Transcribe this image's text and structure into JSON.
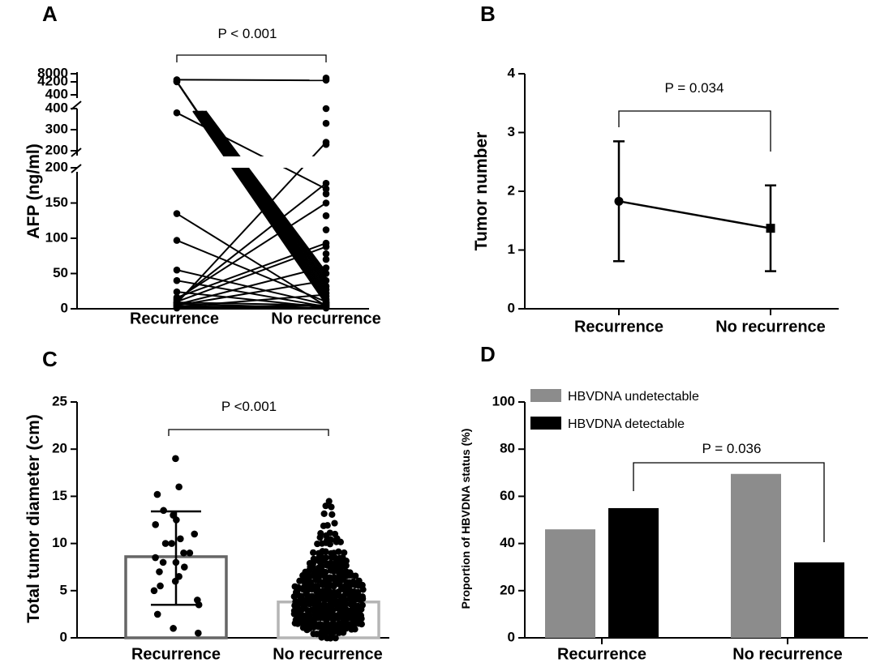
{
  "chart_data": [
    {
      "panel": "A",
      "type": "scatter",
      "ylabel": "AFP (ng/ml)",
      "categories": [
        "Recurrence",
        "No recurrence"
      ],
      "annotation": "P < 0.001",
      "ytick_labels": [
        "0",
        "50",
        "100",
        "150",
        "200",
        "200",
        "300",
        "400",
        "400",
        "4200",
        "8000"
      ],
      "recurrence_values": [
        1,
        2,
        3,
        4,
        5,
        6,
        7,
        8,
        9,
        10,
        12,
        14,
        16,
        24,
        40,
        55,
        97,
        135,
        380,
        4200,
        4400,
        5200
      ],
      "no_recurrence_values": [
        1,
        2,
        3,
        4,
        5,
        6,
        7,
        8,
        9,
        10,
        12,
        14,
        18,
        22,
        27,
        32,
        40,
        50,
        58,
        70,
        78,
        88,
        93,
        112,
        132,
        150,
        163,
        170,
        178,
        230,
        240,
        330,
        400,
        5000,
        6000
      ]
    },
    {
      "panel": "B",
      "type": "line",
      "ylabel": "Tumor number",
      "categories": [
        "Recurrence",
        "No recurrence"
      ],
      "means": [
        1.83,
        1.37
      ],
      "sd_low": [
        0.81,
        0.64
      ],
      "sd_high": [
        2.85,
        2.1
      ],
      "ylim": [
        0,
        4
      ],
      "ytick_labels": [
        "0",
        "1",
        "2",
        "3",
        "4"
      ],
      "annotation": "P = 0.034"
    },
    {
      "panel": "C",
      "type": "bar",
      "ylabel": "Total tumor diameter (cm)",
      "categories": [
        "Recurrence",
        "No recurrence"
      ],
      "values": [
        8.6,
        3.8
      ],
      "sd_low": [
        3.5,
        1.2
      ],
      "sd_high": [
        13.4,
        6.4
      ],
      "ylim": [
        0,
        25
      ],
      "ytick_labels": [
        "0",
        "5",
        "10",
        "15",
        "20",
        "25"
      ],
      "annotation": "P <0.001",
      "recurrence_points": [
        19.0,
        16.0,
        15.2,
        13.5,
        13.0,
        12.5,
        12.0,
        11.0,
        10.5,
        10.0,
        10.0,
        9.0,
        9.0,
        8.5,
        8.0,
        8.0,
        7.5,
        7.0,
        6.5,
        6.0,
        5.5,
        5.0,
        4.0,
        3.5,
        2.5,
        1.0,
        0.5
      ]
    },
    {
      "panel": "D",
      "type": "bar",
      "ylabel": "Proportion of HBVDNA status (%)",
      "categories": [
        "Recurrence",
        "No recurrence"
      ],
      "series": [
        {
          "name": "HBVDNA undetectable",
          "values": [
            46,
            69.5
          ],
          "color": "#8c8c8c"
        },
        {
          "name": "HBVDNA detectable",
          "values": [
            55,
            32
          ],
          "color": "#000000"
        }
      ],
      "ylim": [
        0,
        100
      ],
      "ytick_labels": [
        "0",
        "20",
        "40",
        "60",
        "80",
        "100"
      ],
      "annotation": "P = 0.036"
    }
  ],
  "panel_letters": [
    "A",
    "B",
    "C",
    "D"
  ]
}
